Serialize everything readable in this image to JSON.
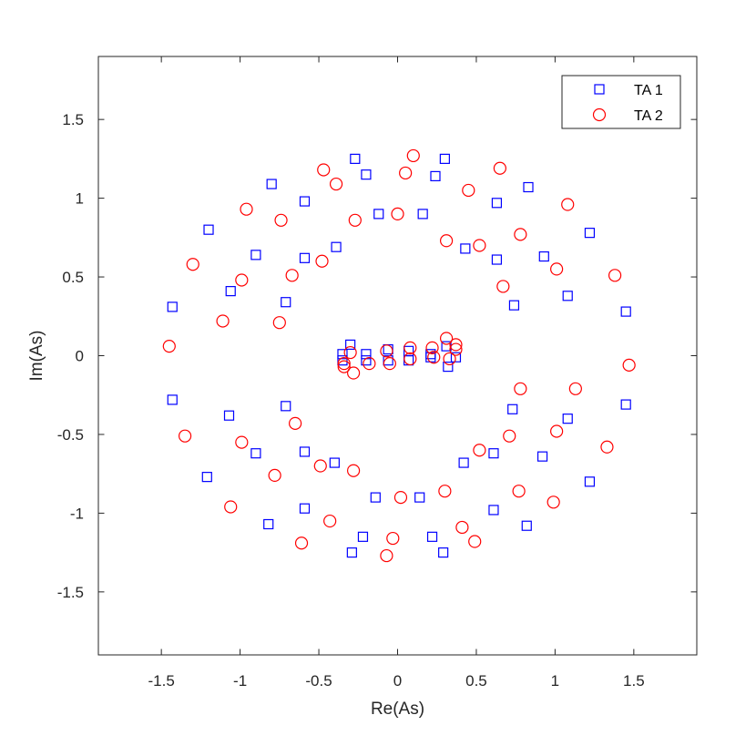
{
  "chart_data": {
    "type": "scatter",
    "xlabel": "Re(As)",
    "ylabel": "Im(As)",
    "xlim": [
      -1.9,
      1.9
    ],
    "ylim": [
      -1.9,
      1.9
    ],
    "xticks": [
      -1.5,
      -1,
      -0.5,
      0,
      0.5,
      1,
      1.5
    ],
    "yticks": [
      -1.5,
      -1,
      -0.5,
      0,
      0.5,
      1,
      1.5
    ],
    "xtick_labels": [
      "-1.5",
      "-1",
      "-0.5",
      "0",
      "0.5",
      "1",
      "1.5"
    ],
    "ytick_labels": [
      "-1.5",
      "-1",
      "-0.5",
      "0",
      "0.5",
      "1",
      "1.5"
    ],
    "grid": false,
    "legend_position": "top-right",
    "series": [
      {
        "name": "TA 1",
        "marker": "square",
        "color": "#0000ff",
        "points": [
          [
            -0.27,
            1.25
          ],
          [
            0.3,
            1.25
          ],
          [
            -0.2,
            1.15
          ],
          [
            0.24,
            1.14
          ],
          [
            -0.8,
            1.09
          ],
          [
            0.83,
            1.07
          ],
          [
            -0.59,
            0.98
          ],
          [
            0.63,
            0.97
          ],
          [
            -0.12,
            0.9
          ],
          [
            0.16,
            0.9
          ],
          [
            -1.2,
            0.8
          ],
          [
            1.22,
            0.78
          ],
          [
            -0.39,
            0.69
          ],
          [
            0.43,
            0.68
          ],
          [
            -0.9,
            0.64
          ],
          [
            0.93,
            0.63
          ],
          [
            -0.59,
            0.62
          ],
          [
            0.63,
            0.61
          ],
          [
            -1.06,
            0.41
          ],
          [
            1.08,
            0.38
          ],
          [
            -0.71,
            0.34
          ],
          [
            0.74,
            0.32
          ],
          [
            -1.43,
            0.31
          ],
          [
            1.45,
            0.28
          ],
          [
            -0.3,
            0.07
          ],
          [
            0.31,
            0.06
          ],
          [
            -0.35,
            0.01
          ],
          [
            -0.2,
            0.01
          ],
          [
            -0.06,
            0.04
          ],
          [
            0.07,
            0.03
          ],
          [
            0.21,
            0.01
          ],
          [
            0.37,
            -0.01
          ],
          [
            -0.35,
            -0.03
          ],
          [
            -0.2,
            -0.03
          ],
          [
            -0.06,
            -0.03
          ],
          [
            0.07,
            -0.03
          ],
          [
            0.21,
            -0.01
          ],
          [
            0.32,
            -0.07
          ],
          [
            -1.43,
            -0.28
          ],
          [
            1.45,
            -0.31
          ],
          [
            -0.71,
            -0.32
          ],
          [
            0.73,
            -0.34
          ],
          [
            -1.07,
            -0.38
          ],
          [
            1.08,
            -0.4
          ],
          [
            -0.9,
            -0.62
          ],
          [
            0.61,
            -0.62
          ],
          [
            -0.59,
            -0.61
          ],
          [
            0.92,
            -0.64
          ],
          [
            -0.4,
            -0.68
          ],
          [
            0.42,
            -0.68
          ],
          [
            -1.21,
            -0.77
          ],
          [
            1.22,
            -0.8
          ],
          [
            -0.14,
            -0.9
          ],
          [
            0.14,
            -0.9
          ],
          [
            -0.59,
            -0.97
          ],
          [
            0.61,
            -0.98
          ],
          [
            -0.82,
            -1.07
          ],
          [
            0.82,
            -1.08
          ],
          [
            -0.22,
            -1.15
          ],
          [
            0.22,
            -1.15
          ],
          [
            -0.29,
            -1.25
          ],
          [
            0.29,
            -1.25
          ]
        ]
      },
      {
        "name": "TA 2",
        "marker": "circle",
        "color": "#ff0000",
        "points": [
          [
            0.1,
            1.27
          ],
          [
            -0.47,
            1.18
          ],
          [
            0.65,
            1.19
          ],
          [
            0.05,
            1.16
          ],
          [
            -0.39,
            1.09
          ],
          [
            0.45,
            1.05
          ],
          [
            -0.96,
            0.93
          ],
          [
            1.08,
            0.96
          ],
          [
            0.0,
            0.9
          ],
          [
            -0.74,
            0.86
          ],
          [
            -0.27,
            0.86
          ],
          [
            0.31,
            0.73
          ],
          [
            0.78,
            0.77
          ],
          [
            0.52,
            0.7
          ],
          [
            -1.3,
            0.58
          ],
          [
            -0.48,
            0.6
          ],
          [
            1.01,
            0.55
          ],
          [
            1.38,
            0.51
          ],
          [
            -0.67,
            0.51
          ],
          [
            -0.99,
            0.48
          ],
          [
            0.67,
            0.44
          ],
          [
            -1.11,
            0.22
          ],
          [
            -0.75,
            0.21
          ],
          [
            -1.45,
            0.06
          ],
          [
            0.31,
            0.11
          ],
          [
            0.37,
            0.07
          ],
          [
            0.37,
            0.04
          ],
          [
            -0.3,
            0.02
          ],
          [
            -0.07,
            0.03
          ],
          [
            0.08,
            0.05
          ],
          [
            0.22,
            0.05
          ],
          [
            -0.34,
            -0.05
          ],
          [
            -0.34,
            -0.07
          ],
          [
            -0.28,
            -0.11
          ],
          [
            -0.18,
            -0.05
          ],
          [
            -0.05,
            -0.05
          ],
          [
            0.08,
            -0.02
          ],
          [
            0.23,
            -0.01
          ],
          [
            0.33,
            -0.02
          ],
          [
            1.47,
            -0.06
          ],
          [
            0.78,
            -0.21
          ],
          [
            1.13,
            -0.21
          ],
          [
            -0.65,
            -0.43
          ],
          [
            -1.35,
            -0.51
          ],
          [
            0.71,
            -0.51
          ],
          [
            1.01,
            -0.48
          ],
          [
            -0.99,
            -0.55
          ],
          [
            1.33,
            -0.58
          ],
          [
            0.52,
            -0.6
          ],
          [
            -0.49,
            -0.7
          ],
          [
            -0.28,
            -0.73
          ],
          [
            -0.78,
            -0.76
          ],
          [
            0.3,
            -0.86
          ],
          [
            0.77,
            -0.86
          ],
          [
            0.02,
            -0.9
          ],
          [
            0.99,
            -0.93
          ],
          [
            -1.06,
            -0.96
          ],
          [
            -0.43,
            -1.05
          ],
          [
            0.41,
            -1.09
          ],
          [
            -0.03,
            -1.16
          ],
          [
            0.49,
            -1.18
          ],
          [
            -0.61,
            -1.19
          ],
          [
            -0.07,
            -1.27
          ]
        ]
      }
    ]
  }
}
